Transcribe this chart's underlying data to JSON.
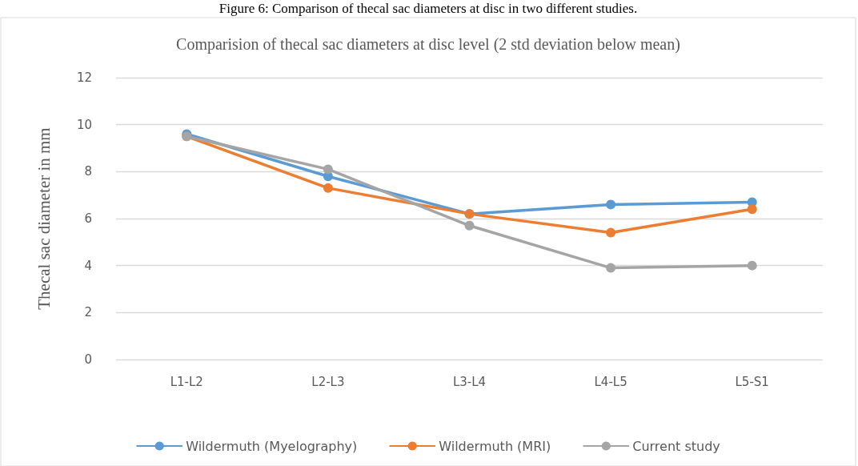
{
  "chart_data": {
    "type": "line",
    "title": "Comparision of thecal sac diameters at disc level (2 std deviation below mean)",
    "ylabel": "Thecal sac diameter in mm",
    "annotations": [
      "Figure 6: Comparison of thecal sac diameters at disc in two different studies."
    ],
    "categories": [
      "L1-L2",
      "L2-L3",
      "L3-L4",
      "L4-L5",
      "L5-S1"
    ],
    "series": [
      {
        "name": "Wildermuth (Myelography)",
        "color": "#5b9bd5",
        "values": [
          9.6,
          7.8,
          6.2,
          6.6,
          6.7
        ]
      },
      {
        "name": "Wildermuth (MRI)",
        "color": "#ed7d31",
        "values": [
          9.5,
          7.3,
          6.2,
          5.4,
          6.4
        ]
      },
      {
        "name": "Current study",
        "color": "#a5a5a5",
        "values": [
          9.5,
          8.1,
          5.7,
          3.9,
          4.0
        ]
      }
    ],
    "ylim": [
      0,
      12
    ],
    "yticks": [
      0,
      2,
      4,
      6,
      8,
      10,
      12
    ],
    "grid": "y",
    "legend": "bottom",
    "marker": "circle"
  }
}
